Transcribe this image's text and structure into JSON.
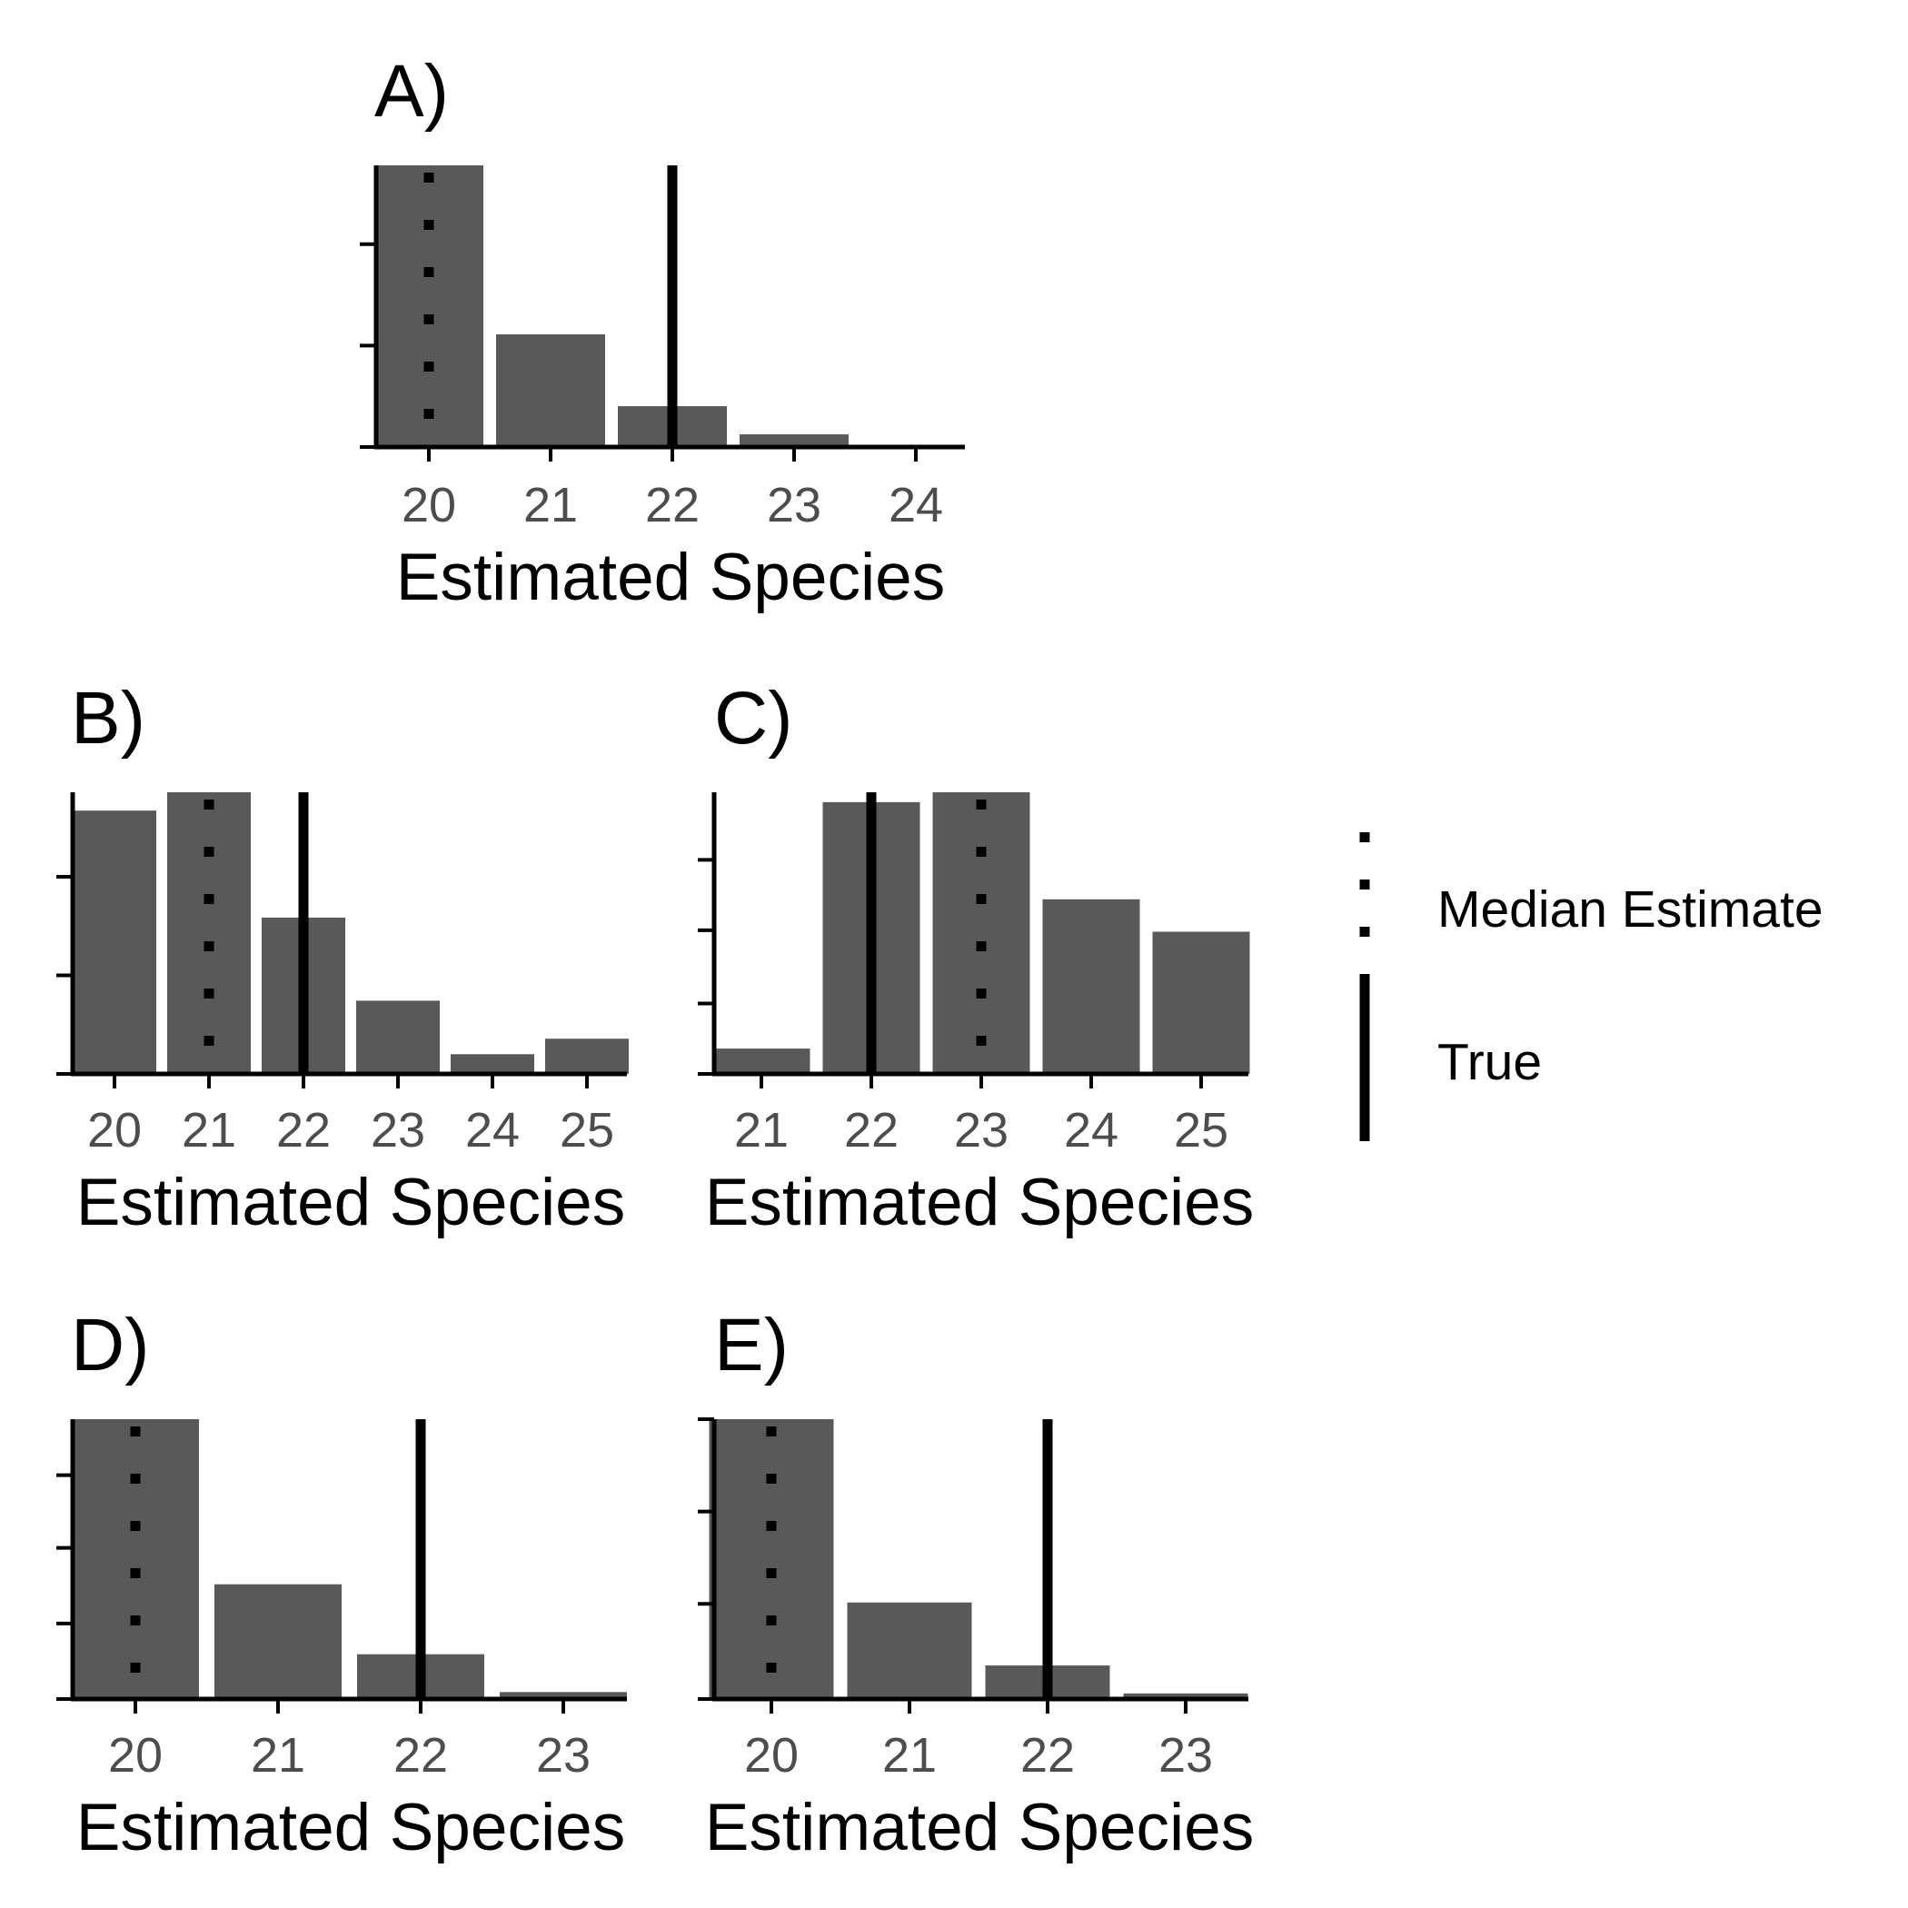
{
  "chart_data": [
    {
      "type": "bar",
      "panel_label": "A)",
      "categories": [
        "20",
        "21",
        "22",
        "23",
        "24"
      ],
      "values": [
        1.0,
        0.4,
        0.145,
        0.045,
        0.0
      ],
      "ylim": [
        0,
        1
      ],
      "y_ticks": [
        0,
        0.36,
        0.72
      ],
      "median_estimate": 20,
      "true_value": 22,
      "xlabel": "Estimated Species",
      "ylabel": ""
    },
    {
      "type": "bar",
      "panel_label": "B)",
      "categories": [
        "20",
        "21",
        "22",
        "23",
        "24",
        "25"
      ],
      "values": [
        0.935,
        1.0,
        0.555,
        0.26,
        0.07,
        0.125
      ],
      "ylim": [
        0,
        1
      ],
      "y_ticks": [
        0,
        0.35,
        0.7
      ],
      "median_estimate": 21,
      "true_value": 22,
      "xlabel": "Estimated Species",
      "ylabel": ""
    },
    {
      "type": "bar",
      "panel_label": "C)",
      "categories": [
        "21",
        "22",
        "23",
        "24",
        "25"
      ],
      "values": [
        0.09,
        0.965,
        1.0,
        0.62,
        0.505
      ],
      "ylim": [
        0,
        1
      ],
      "y_ticks": [
        0,
        0.25,
        0.51,
        0.76
      ],
      "median_estimate": 23,
      "true_value": 22,
      "xlabel": "Estimated Species",
      "ylabel": ""
    },
    {
      "type": "bar",
      "panel_label": "D)",
      "categories": [
        "20",
        "21",
        "22",
        "23"
      ],
      "values": [
        1.0,
        0.41,
        0.16,
        0.025
      ],
      "ylim": [
        0,
        1
      ],
      "y_ticks": [
        0,
        0.27,
        0.54,
        0.8
      ],
      "median_estimate": 20,
      "true_value": 22,
      "xlabel": "Estimated Species",
      "ylabel": ""
    },
    {
      "type": "bar",
      "panel_label": "E)",
      "categories": [
        "20",
        "21",
        "22",
        "23"
      ],
      "values": [
        1.0,
        0.345,
        0.12,
        0.02
      ],
      "ylim": [
        0,
        1
      ],
      "y_ticks": [
        0,
        0.34,
        0.67,
        1.0
      ],
      "median_estimate": 20,
      "true_value": 22,
      "xlabel": "Estimated Species",
      "ylabel": ""
    }
  ],
  "legend": {
    "items": [
      {
        "label": "Median Estimate",
        "linetype": "dotted"
      },
      {
        "label": "True",
        "linetype": "solid"
      }
    ]
  },
  "colors": {
    "bar": "#595959",
    "axis": "#000000",
    "tick_label": "#4d4d4d",
    "reference_line": "#000000"
  }
}
